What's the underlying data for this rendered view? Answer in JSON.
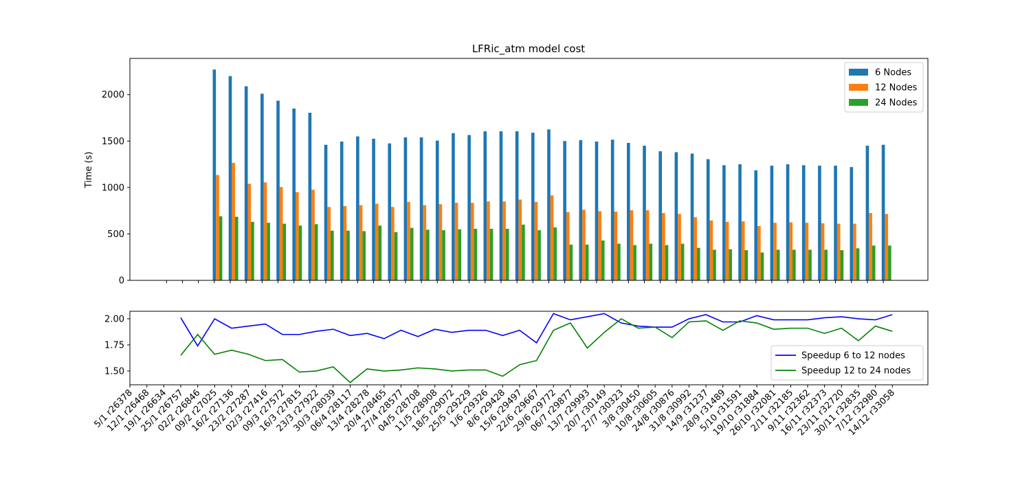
{
  "chart_data": [
    {
      "type": "bar",
      "title": "LFRic_atm model cost",
      "ylabel": "Time (s)",
      "xlim": [
        -2.3,
        47.8
      ],
      "ylim": [
        0,
        2390
      ],
      "yticks": [
        0,
        500,
        1000,
        1500,
        2000
      ],
      "legend": "upper right",
      "series": [
        {
          "name": "6 Nodes",
          "color": "#1f77b4",
          "values": [
            null,
            null,
            null,
            2270,
            2200,
            2090,
            2010,
            1935,
            1850,
            1805,
            1460,
            1495,
            1550,
            1525,
            1475,
            1540,
            1540,
            1505,
            1585,
            1565,
            1605,
            1605,
            1605,
            1590,
            1625,
            1500,
            1510,
            1495,
            1515,
            1480,
            1450,
            1390,
            1380,
            1365,
            1305,
            1240,
            1250,
            1185,
            1235,
            1250,
            1240,
            1235,
            1235,
            1220,
            1450,
            1460
          ]
        },
        {
          "name": "12 Nodes",
          "color": "#ff7f0e",
          "values": [
            null,
            null,
            null,
            1135,
            1265,
            1040,
            1055,
            1005,
            950,
            975,
            790,
            800,
            810,
            825,
            790,
            845,
            810,
            820,
            835,
            835,
            850,
            850,
            870,
            845,
            915,
            735,
            760,
            745,
            740,
            755,
            755,
            725,
            715,
            680,
            645,
            630,
            635,
            585,
            620,
            625,
            620,
            615,
            610,
            610,
            725,
            715
          ]
        },
        {
          "name": "24 Nodes",
          "color": "#2ca02c",
          "values": [
            null,
            null,
            null,
            690,
            685,
            630,
            620,
            610,
            590,
            605,
            535,
            535,
            530,
            590,
            520,
            565,
            545,
            540,
            550,
            555,
            555,
            555,
            600,
            540,
            570,
            385,
            385,
            430,
            395,
            380,
            395,
            380,
            395,
            350,
            330,
            335,
            325,
            300,
            330,
            330,
            330,
            330,
            325,
            345,
            375,
            375
          ]
        }
      ]
    },
    {
      "type": "line",
      "xlim": [
        0,
        47.1
      ],
      "ylim": [
        1.368,
        2.072
      ],
      "yticks": [
        {
          "value": 1.5,
          "label": "1.50"
        },
        {
          "value": 1.75,
          "label": "1.75"
        },
        {
          "value": 2.0,
          "label": "2.00"
        }
      ],
      "legend": "lower right",
      "categories": [
        "5/1 r26378",
        "12/1 r26468",
        "19/1 r26634",
        "25/1 r26757",
        "02/2 r26846",
        "09/2 r27025",
        "16/2 r27136",
        "23/2 r27287",
        "02/3 r27416",
        "09/3 r27572",
        "16/3 r27815",
        "23/3 r27922",
        "30/3 r28039",
        "06/4 r28117",
        "13/4 r28278",
        "20/4 r28465",
        "27/4 r28577",
        "04/5 r28708",
        "11/5 r28908",
        "18/5 r29072",
        "25/5 r29229",
        "1/6 r29326",
        "8/6 r29428",
        "15/6 r29497",
        "22/6 r29667",
        "29/6 r29772",
        "06/7 r29877",
        "13/7 r29993",
        "20/7 r30149",
        "27/7 r30323",
        "3/8 r30450",
        "10/8 r30605",
        "24/8 r30876",
        "31/8 r30992",
        "14/9 r31237",
        "28/9 r31489",
        "5/10 r31591",
        "19/10 r31884",
        "26/10 r32081",
        "2/11 r32185",
        "9/11 r32362",
        "16/11 r32373",
        "23/11 r32720",
        "30/11 r32835",
        "7/12 r32980",
        "14/12 r33058"
      ],
      "series": [
        {
          "name": "Speedup 6 to 12 nodes",
          "color": "#0000ff",
          "values": [
            null,
            null,
            null,
            2.01,
            1.74,
            2.0,
            1.91,
            1.93,
            1.95,
            1.85,
            1.85,
            1.88,
            1.9,
            1.84,
            1.86,
            1.81,
            1.89,
            1.83,
            1.9,
            1.87,
            1.89,
            1.89,
            1.84,
            1.89,
            1.77,
            2.05,
            1.99,
            2.02,
            2.05,
            1.96,
            1.93,
            1.92,
            1.92,
            2.0,
            2.04,
            1.97,
            1.97,
            2.03,
            1.99,
            1.99,
            1.99,
            2.01,
            2.02,
            2.0,
            1.99,
            2.04
          ]
        },
        {
          "name": "Speedup 12 to 24 nodes",
          "color": "#008000",
          "values": [
            null,
            null,
            null,
            1.65,
            1.85,
            1.66,
            1.7,
            1.66,
            1.6,
            1.61,
            1.49,
            1.5,
            1.54,
            1.39,
            1.52,
            1.5,
            1.51,
            1.53,
            1.52,
            1.5,
            1.51,
            1.51,
            1.45,
            1.56,
            1.6,
            1.89,
            1.96,
            1.72,
            1.87,
            2.0,
            1.91,
            1.92,
            1.82,
            1.97,
            1.98,
            1.89,
            1.98,
            1.96,
            1.9,
            1.91,
            1.91,
            1.86,
            1.91,
            1.79,
            1.93,
            1.88
          ]
        }
      ]
    }
  ]
}
